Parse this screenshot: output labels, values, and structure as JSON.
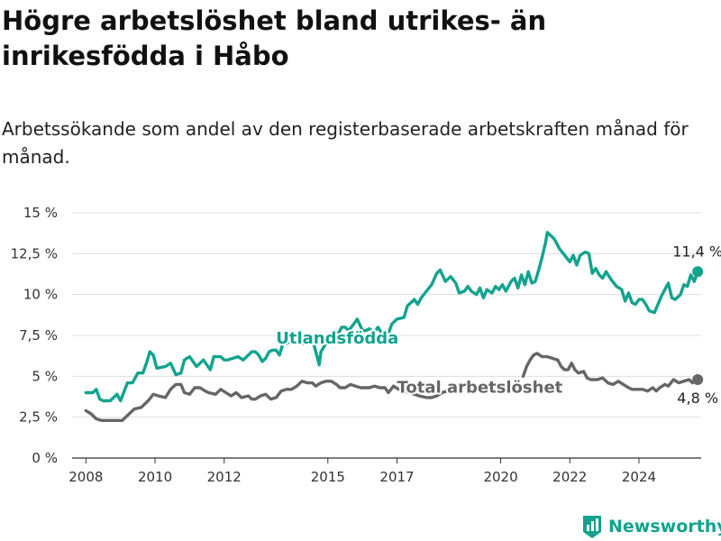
{
  "chart_data": {
    "type": "line",
    "title": "Högre arbetslöshet bland utrikes- än inrikesfödda i Håbo",
    "subtitle": "Arbetssökande som andel av den registerbaserade arbetskraften månad för månad.",
    "ylim": [
      0,
      15
    ],
    "y_ticks": [
      0,
      2.5,
      5,
      7.5,
      10,
      12.5,
      15
    ],
    "y_tick_labels": [
      "0 %",
      "2,5 %",
      "5 %",
      "7,5 %",
      "10 %",
      "12,5 %",
      "15 %"
    ],
    "xlim": [
      2007.6,
      2025.8
    ],
    "x_ticks": [
      2008,
      2010,
      2012,
      2015,
      2017,
      2020,
      2022,
      2024
    ],
    "x_tick_labels": [
      "2008",
      "2010",
      "2012",
      "2015",
      "2017",
      "2020",
      "2022",
      "2024"
    ],
    "grid": true,
    "legend": "inline labels",
    "series": [
      {
        "name": "Utlandsfödda",
        "color": "#12a38e",
        "end_label": "11,4 %",
        "points": [
          [
            2008.0,
            4.0
          ],
          [
            2008.2,
            4.0
          ],
          [
            2008.3,
            4.2
          ],
          [
            2008.4,
            3.6
          ],
          [
            2008.5,
            3.5
          ],
          [
            2008.7,
            3.5
          ],
          [
            2008.9,
            3.9
          ],
          [
            2009.0,
            3.5
          ],
          [
            2009.2,
            4.6
          ],
          [
            2009.35,
            4.6
          ],
          [
            2009.5,
            5.2
          ],
          [
            2009.65,
            5.2
          ],
          [
            2009.75,
            5.8
          ],
          [
            2009.85,
            6.5
          ],
          [
            2009.95,
            6.3
          ],
          [
            2010.05,
            5.5
          ],
          [
            2010.3,
            5.6
          ],
          [
            2010.45,
            5.8
          ],
          [
            2010.6,
            5.1
          ],
          [
            2010.75,
            5.2
          ],
          [
            2010.85,
            6.0
          ],
          [
            2011.0,
            6.2
          ],
          [
            2011.2,
            5.6
          ],
          [
            2011.4,
            6.0
          ],
          [
            2011.6,
            5.4
          ],
          [
            2011.7,
            6.2
          ],
          [
            2011.9,
            6.2
          ],
          [
            2012.0,
            6.0
          ],
          [
            2012.1,
            6.0
          ],
          [
            2012.25,
            6.1
          ],
          [
            2012.4,
            6.2
          ],
          [
            2012.55,
            6.0
          ],
          [
            2012.7,
            6.3
          ],
          [
            2012.8,
            6.5
          ],
          [
            2012.9,
            6.5
          ],
          [
            2013.0,
            6.3
          ],
          [
            2013.1,
            5.9
          ],
          [
            2013.2,
            6.1
          ],
          [
            2013.3,
            6.5
          ],
          [
            2013.4,
            6.6
          ],
          [
            2013.5,
            6.6
          ],
          [
            2013.6,
            6.3
          ],
          [
            2013.7,
            7.0
          ],
          [
            2013.8,
            7.0
          ],
          [
            2013.95,
            7.2
          ],
          [
            2014.1,
            7.0
          ],
          [
            2014.3,
            7.0
          ],
          [
            2014.5,
            7.5
          ],
          [
            2014.6,
            6.9
          ],
          [
            2014.75,
            5.7
          ],
          [
            2014.8,
            6.5
          ],
          [
            2015.0,
            7.2
          ],
          [
            2015.1,
            7.4
          ],
          [
            2015.25,
            7.4
          ],
          [
            2015.4,
            8.0
          ],
          [
            2015.5,
            8.0
          ],
          [
            2015.6,
            7.8
          ],
          [
            2015.75,
            8.2
          ],
          [
            2015.85,
            8.5
          ],
          [
            2016.0,
            7.8
          ],
          [
            2016.1,
            7.8
          ],
          [
            2016.2,
            7.9
          ],
          [
            2016.35,
            7.7
          ],
          [
            2016.45,
            8.0
          ],
          [
            2016.6,
            7.5
          ],
          [
            2016.75,
            7.6
          ],
          [
            2016.85,
            8.2
          ],
          [
            2017.0,
            8.5
          ],
          [
            2017.2,
            8.6
          ],
          [
            2017.3,
            9.3
          ],
          [
            2017.5,
            9.7
          ],
          [
            2017.6,
            9.4
          ],
          [
            2017.7,
            9.8
          ],
          [
            2017.85,
            10.2
          ],
          [
            2018.0,
            10.6
          ],
          [
            2018.15,
            11.3
          ],
          [
            2018.25,
            11.5
          ],
          [
            2018.4,
            10.8
          ],
          [
            2018.55,
            11.1
          ],
          [
            2018.7,
            10.7
          ],
          [
            2018.8,
            10.1
          ],
          [
            2018.95,
            10.2
          ],
          [
            2019.05,
            10.5
          ],
          [
            2019.15,
            10.2
          ],
          [
            2019.3,
            10.0
          ],
          [
            2019.4,
            10.4
          ],
          [
            2019.5,
            9.8
          ],
          [
            2019.6,
            10.3
          ],
          [
            2019.75,
            10.1
          ],
          [
            2019.85,
            10.5
          ],
          [
            2019.95,
            10.3
          ],
          [
            2020.05,
            10.6
          ],
          [
            2020.15,
            10.2
          ],
          [
            2020.3,
            10.8
          ],
          [
            2020.4,
            11.0
          ],
          [
            2020.5,
            10.4
          ],
          [
            2020.6,
            11.2
          ],
          [
            2020.7,
            10.6
          ],
          [
            2020.8,
            11.4
          ],
          [
            2020.9,
            10.7
          ],
          [
            2021.0,
            10.8
          ],
          [
            2021.1,
            11.5
          ],
          [
            2021.2,
            12.3
          ],
          [
            2021.3,
            13.2
          ],
          [
            2021.35,
            13.8
          ],
          [
            2021.45,
            13.6
          ],
          [
            2021.55,
            13.4
          ],
          [
            2021.7,
            12.8
          ],
          [
            2021.85,
            12.4
          ],
          [
            2022.0,
            12.0
          ],
          [
            2022.1,
            12.4
          ],
          [
            2022.2,
            11.8
          ],
          [
            2022.3,
            12.4
          ],
          [
            2022.45,
            12.6
          ],
          [
            2022.55,
            12.5
          ],
          [
            2022.65,
            11.3
          ],
          [
            2022.75,
            11.6
          ],
          [
            2022.85,
            11.2
          ],
          [
            2022.95,
            11.0
          ],
          [
            2023.05,
            11.4
          ],
          [
            2023.2,
            10.9
          ],
          [
            2023.35,
            10.5
          ],
          [
            2023.5,
            10.3
          ],
          [
            2023.6,
            9.6
          ],
          [
            2023.7,
            10.1
          ],
          [
            2023.8,
            9.5
          ],
          [
            2023.9,
            9.4
          ],
          [
            2024.0,
            9.7
          ],
          [
            2024.1,
            9.7
          ],
          [
            2024.2,
            9.4
          ],
          [
            2024.3,
            9.0
          ],
          [
            2024.45,
            8.9
          ],
          [
            2024.55,
            9.4
          ],
          [
            2024.65,
            9.9
          ],
          [
            2024.75,
            10.3
          ],
          [
            2024.85,
            10.7
          ],
          [
            2024.95,
            9.8
          ],
          [
            2025.05,
            9.7
          ],
          [
            2025.2,
            10.0
          ],
          [
            2025.3,
            10.6
          ],
          [
            2025.4,
            10.5
          ],
          [
            2025.5,
            11.2
          ],
          [
            2025.6,
            10.8
          ],
          [
            2025.7,
            11.4
          ]
        ]
      },
      {
        "name": "Total arbetslöshet",
        "color": "#666666",
        "end_label": "4,8 %",
        "points": [
          [
            2008.0,
            2.9
          ],
          [
            2008.15,
            2.7
          ],
          [
            2008.3,
            2.4
          ],
          [
            2008.45,
            2.3
          ],
          [
            2008.7,
            2.3
          ],
          [
            2008.9,
            2.3
          ],
          [
            2009.05,
            2.3
          ],
          [
            2009.25,
            2.7
          ],
          [
            2009.4,
            3.0
          ],
          [
            2009.6,
            3.1
          ],
          [
            2009.8,
            3.5
          ],
          [
            2009.95,
            3.9
          ],
          [
            2010.1,
            3.8
          ],
          [
            2010.3,
            3.7
          ],
          [
            2010.45,
            4.2
          ],
          [
            2010.6,
            4.5
          ],
          [
            2010.75,
            4.5
          ],
          [
            2010.85,
            4.0
          ],
          [
            2011.0,
            3.9
          ],
          [
            2011.15,
            4.3
          ],
          [
            2011.3,
            4.3
          ],
          [
            2011.45,
            4.1
          ],
          [
            2011.55,
            4.0
          ],
          [
            2011.75,
            3.9
          ],
          [
            2011.9,
            4.2
          ],
          [
            2012.05,
            4.0
          ],
          [
            2012.2,
            3.8
          ],
          [
            2012.35,
            4.0
          ],
          [
            2012.5,
            3.7
          ],
          [
            2012.7,
            3.8
          ],
          [
            2012.8,
            3.6
          ],
          [
            2012.9,
            3.6
          ],
          [
            2013.05,
            3.8
          ],
          [
            2013.2,
            3.9
          ],
          [
            2013.35,
            3.6
          ],
          [
            2013.5,
            3.7
          ],
          [
            2013.65,
            4.1
          ],
          [
            2013.8,
            4.2
          ],
          [
            2013.95,
            4.2
          ],
          [
            2014.1,
            4.4
          ],
          [
            2014.25,
            4.7
          ],
          [
            2014.4,
            4.6
          ],
          [
            2014.55,
            4.6
          ],
          [
            2014.65,
            4.4
          ],
          [
            2014.8,
            4.6
          ],
          [
            2014.95,
            4.7
          ],
          [
            2015.1,
            4.7
          ],
          [
            2015.25,
            4.5
          ],
          [
            2015.35,
            4.3
          ],
          [
            2015.5,
            4.3
          ],
          [
            2015.65,
            4.5
          ],
          [
            2015.8,
            4.4
          ],
          [
            2015.95,
            4.3
          ],
          [
            2016.1,
            4.3
          ],
          [
            2016.2,
            4.3
          ],
          [
            2016.35,
            4.4
          ],
          [
            2016.5,
            4.3
          ],
          [
            2016.65,
            4.3
          ],
          [
            2016.75,
            4.0
          ],
          [
            2016.9,
            4.4
          ],
          [
            2017.05,
            4.2
          ],
          [
            2017.2,
            4.1
          ],
          [
            2017.35,
            4.0
          ],
          [
            2017.5,
            3.9
          ],
          [
            2017.65,
            3.8
          ],
          [
            2017.85,
            3.7
          ],
          [
            2018.0,
            3.7
          ],
          [
            2018.15,
            3.8
          ],
          [
            2018.3,
            4.0
          ],
          [
            2018.45,
            4.1
          ],
          [
            2018.6,
            4.1
          ],
          [
            2018.75,
            4.0
          ],
          null,
          [
            2020.65,
            5.0
          ],
          [
            2020.75,
            5.6
          ],
          [
            2020.85,
            6.0
          ],
          [
            2020.95,
            6.3
          ],
          [
            2021.05,
            6.4
          ],
          [
            2021.2,
            6.2
          ],
          [
            2021.35,
            6.2
          ],
          [
            2021.5,
            6.1
          ],
          [
            2021.65,
            6.0
          ],
          [
            2021.75,
            5.6
          ],
          [
            2021.85,
            5.4
          ],
          [
            2021.95,
            5.4
          ],
          [
            2022.05,
            5.8
          ],
          [
            2022.15,
            5.4
          ],
          [
            2022.25,
            5.2
          ],
          [
            2022.4,
            5.3
          ],
          [
            2022.5,
            4.9
          ],
          [
            2022.6,
            4.8
          ],
          [
            2022.8,
            4.8
          ],
          [
            2022.95,
            4.9
          ],
          [
            2023.1,
            4.6
          ],
          [
            2023.25,
            4.5
          ],
          [
            2023.4,
            4.7
          ],
          [
            2023.55,
            4.5
          ],
          [
            2023.7,
            4.3
          ],
          [
            2023.8,
            4.2
          ],
          [
            2023.95,
            4.2
          ],
          [
            2024.1,
            4.2
          ],
          [
            2024.25,
            4.1
          ],
          [
            2024.4,
            4.3
          ],
          [
            2024.5,
            4.1
          ],
          [
            2024.6,
            4.3
          ],
          [
            2024.75,
            4.5
          ],
          [
            2024.85,
            4.4
          ],
          [
            2025.0,
            4.8
          ],
          [
            2025.15,
            4.6
          ],
          [
            2025.3,
            4.7
          ],
          [
            2025.45,
            4.8
          ],
          [
            2025.55,
            4.6
          ],
          [
            2025.7,
            4.8
          ]
        ]
      }
    ]
  },
  "brand": {
    "name": "Newsworthy",
    "color": "#12a38e",
    "icon": "bar-chart-logo-icon"
  }
}
